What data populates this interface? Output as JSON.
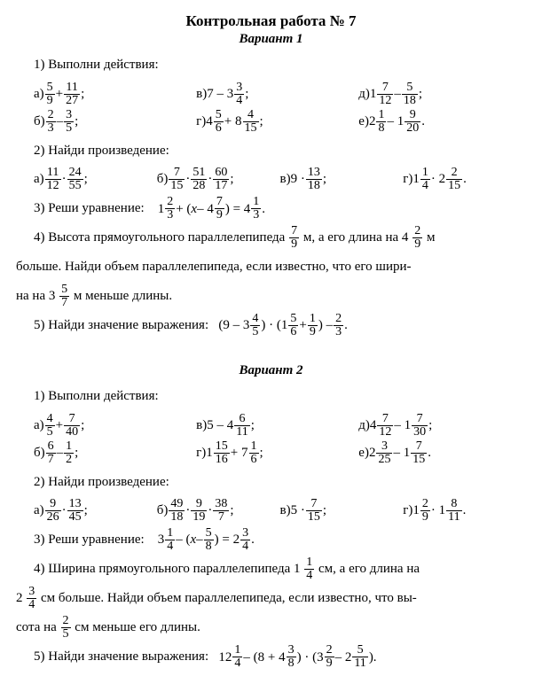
{
  "doc": {
    "title": "Контрольная работа № 7",
    "variants": [
      {
        "heading": "Вариант 1",
        "task1_label": "1) Выполни действия:",
        "task1_rows": [
          [
            {
              "l": "а)",
              "expr": [
                "f",
                "5",
                "9",
                "+",
                "f",
                "11",
                "27",
                ";"
              ]
            },
            {
              "l": "в)",
              "expr": [
                "t",
                "7 – 3",
                "f",
                "3",
                "4",
                ";"
              ]
            },
            {
              "l": "д)",
              "expr": [
                "m",
                "1",
                "7",
                "12",
                "t",
                " – ",
                "f",
                "5",
                "18",
                ";"
              ]
            }
          ],
          [
            {
              "l": "б)",
              "expr": [
                "f",
                "2",
                "3",
                "t",
                " – ",
                "f",
                "3",
                "5",
                ";"
              ]
            },
            {
              "l": "г)",
              "expr": [
                "m",
                "4",
                "5",
                "6",
                "t",
                " + 8",
                "f",
                "4",
                "15",
                ";"
              ]
            },
            {
              "l": "е)",
              "expr": [
                "m",
                "2",
                "1",
                "8",
                "t",
                " – 1",
                "f",
                "9",
                "20",
                "t",
                "."
              ]
            }
          ]
        ],
        "task2_label": "2) Найди произведение:",
        "task2_rows": [
          [
            {
              "l": "а)",
              "expr": [
                "f",
                "11",
                "12",
                "t",
                " · ",
                "f",
                "24",
                "55",
                ";"
              ]
            },
            {
              "l": "б)",
              "expr": [
                "f",
                "7",
                "15",
                "t",
                " · ",
                "f",
                "51",
                "28",
                "t",
                " · ",
                "f",
                "60",
                "17",
                ";"
              ]
            },
            {
              "l": "в)",
              "expr": [
                "t",
                "9 · ",
                "f",
                "13",
                "18",
                ";"
              ]
            },
            {
              "l": "г)",
              "expr": [
                "m",
                "1",
                "1",
                "4",
                "t",
                " · 2",
                "f",
                "2",
                "15",
                "t",
                "."
              ]
            }
          ]
        ],
        "task3_label": "3) Реши уравнение:",
        "task3_expr": [
          "m",
          "1",
          "2",
          "3",
          "t",
          " + (",
          "i",
          "x",
          "t",
          " – 4",
          "f",
          "7",
          "9",
          "t",
          ") = 4",
          "f",
          "1",
          "3",
          "t",
          "."
        ],
        "task4_a": "4) Высота прямоугольного параллелепипеда ",
        "task4_af": [
          "f",
          "7",
          "9"
        ],
        "task4_b": " м, а его длина на 4",
        "task4_bf": [
          "f",
          "2",
          "9"
        ],
        "task4_c": " м",
        "task4_line2a": "больше. Найди объем параллелепипеда, если известно, что его шири-",
        "task4_line3a": "на на 3",
        "task4_line3f": [
          "f",
          "5",
          "7"
        ],
        "task4_line3b": " м меньше длины.",
        "task5_label": "5) Найди значение выражения:",
        "task5_expr": [
          "t",
          "(9 – 3",
          "f",
          "4",
          "5",
          "t",
          ") · (1",
          "f",
          "5",
          "6",
          "t",
          " + ",
          "f",
          "1",
          "9",
          "t",
          ") – ",
          "f",
          "2",
          "3",
          "t",
          "."
        ]
      },
      {
        "heading": "Вариант 2",
        "task1_label": "1) Выполни действия:",
        "task1_rows": [
          [
            {
              "l": "а)",
              "expr": [
                "f",
                "4",
                "5",
                "t",
                " + ",
                "f",
                "7",
                "40",
                ";"
              ]
            },
            {
              "l": "в)",
              "expr": [
                "t",
                "5 – 4",
                "f",
                "6",
                "11",
                ";"
              ]
            },
            {
              "l": "д)",
              "expr": [
                "m",
                "4",
                "7",
                "12",
                "t",
                " – 1",
                "f",
                "7",
                "30",
                ";"
              ]
            }
          ],
          [
            {
              "l": "б)",
              "expr": [
                "f",
                "6",
                "7",
                "t",
                " – ",
                "f",
                "1",
                "2",
                ";"
              ]
            },
            {
              "l": "г)",
              "expr": [
                "m",
                "1",
                "15",
                "16",
                "t",
                " + 7",
                "f",
                "1",
                "6",
                ";"
              ]
            },
            {
              "l": "е)",
              "expr": [
                "m",
                "2",
                "3",
                "25",
                "t",
                " – 1",
                "f",
                "7",
                "15",
                "t",
                "."
              ]
            }
          ]
        ],
        "task2_label": "2) Найди произведение:",
        "task2_rows": [
          [
            {
              "l": "а)",
              "expr": [
                "f",
                "9",
                "26",
                "t",
                " · ",
                "f",
                "13",
                "45",
                ";"
              ]
            },
            {
              "l": "б)",
              "expr": [
                "f",
                "49",
                "18",
                "t",
                " · ",
                "f",
                "9",
                "19",
                "t",
                " · ",
                "f",
                "38",
                "7",
                ";"
              ]
            },
            {
              "l": "в)",
              "expr": [
                "t",
                "5 · ",
                "f",
                "7",
                "15",
                ";"
              ]
            },
            {
              "l": "г)",
              "expr": [
                "m",
                "1",
                "2",
                "9",
                "t",
                " · 1",
                "f",
                "8",
                "11",
                "t",
                "."
              ]
            }
          ]
        ],
        "task3_label": "3) Реши уравнение:",
        "task3_expr": [
          "m",
          "3",
          "1",
          "4",
          "t",
          " – (",
          "i",
          "x",
          "t",
          " – ",
          "f",
          "5",
          "8",
          "t",
          ") = 2",
          "f",
          "3",
          "4",
          "t",
          "."
        ],
        "task4_a": "4) Ширина прямоугольного параллелепипеда 1",
        "task4_af": [
          "f",
          "1",
          "4"
        ],
        "task4_b": " см, а его длина на",
        "task4_bf": [],
        "task4_c": "",
        "task4_line2pre": "2",
        "task4_line2f": [
          "f",
          "3",
          "4"
        ],
        "task4_line2a": " см больше. Найди объем параллелепипеда, если известно, что вы-",
        "task4_line3a": "сота на ",
        "task4_line3f": [
          "f",
          "2",
          "5"
        ],
        "task4_line3b": " см меньше его длины.",
        "task5_label": "5) Найди значение выражения:",
        "task5_expr": [
          "m",
          "12",
          "1",
          "4",
          "t",
          " – (8 + 4",
          "f",
          "3",
          "8",
          "t",
          ") · (3",
          "f",
          "2",
          "9",
          "t",
          " – 2",
          "f",
          "5",
          "11",
          "t",
          ")."
        ]
      }
    ]
  },
  "style": {
    "font_family": "Times New Roman",
    "body_fontsize": 15,
    "title_fontsize": 17,
    "text_color": "#000000",
    "background_color": "#ffffff"
  }
}
